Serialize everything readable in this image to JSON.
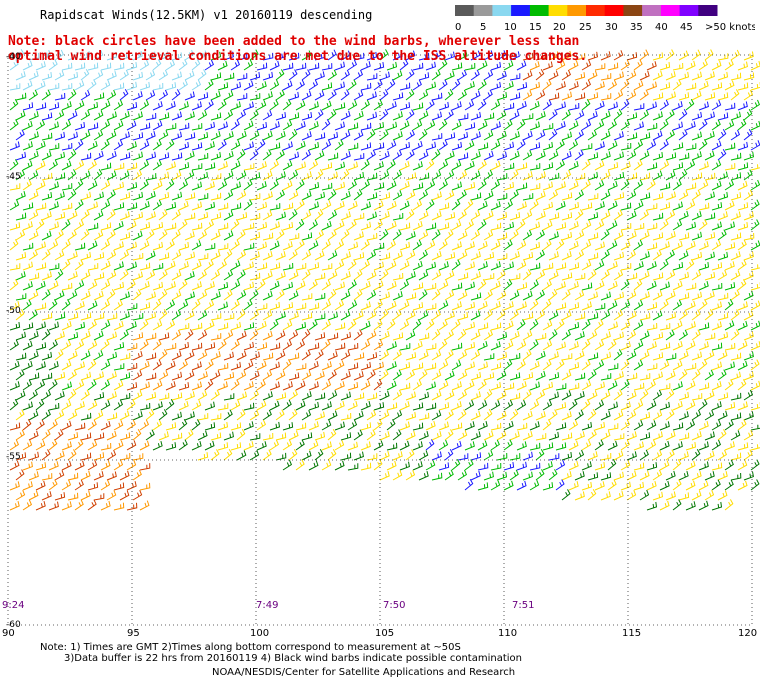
{
  "title": "Rapidscat Winds(12.5KM) v1 20160119 descending",
  "note_line1": "Note: black circles have been added to the wind barbs, wherever less than",
  "note_line2": "optimal wind retrieval conditions are met due to the ISS altitude changes.",
  "colorbar": {
    "labels": [
      "0",
      "5",
      "10",
      "15",
      "20",
      "25",
      "30",
      "35",
      "40",
      "45",
      ">50 knots"
    ],
    "colors": [
      "#5a5a5a",
      "#9a9a9a",
      "#8ad8f0",
      "#1a1aff",
      "#00bb00",
      "#ffdd00",
      "#ff9900",
      "#ff2a00",
      "#ff0000",
      "#8b4513",
      "#c070c0",
      "#ff00ff",
      "#8000ff",
      "#400080"
    ]
  },
  "x_ticks": [
    "90",
    "95",
    "100",
    "105",
    "110",
    "115",
    "120"
  ],
  "y_ticks": [
    "-40",
    "-45",
    "-50",
    "-55",
    "-60"
  ],
  "times": [
    "9:24",
    "7:49",
    "7:50",
    "7:51"
  ],
  "footnote_line1": "Note: 1) Times are GMT 2)Times along bottom correspond to measurement at ~50S",
  "footnote_line2": "3)Data buffer is 22 hrs from 20160119 4) Black wind barbs indicate possible contamination",
  "credit": "NOAA/NESDIS/Center for Satellite Applications and Research",
  "wind_colors": {
    "calm": "#8ad8f0",
    "light": "#1a1aff",
    "moderate": "#00bb00",
    "moderate_dark": "#007700",
    "fresh": "#ffdd00",
    "strong": "#ff9900",
    "gale": "#d04000",
    "storm": "#c00060"
  }
}
